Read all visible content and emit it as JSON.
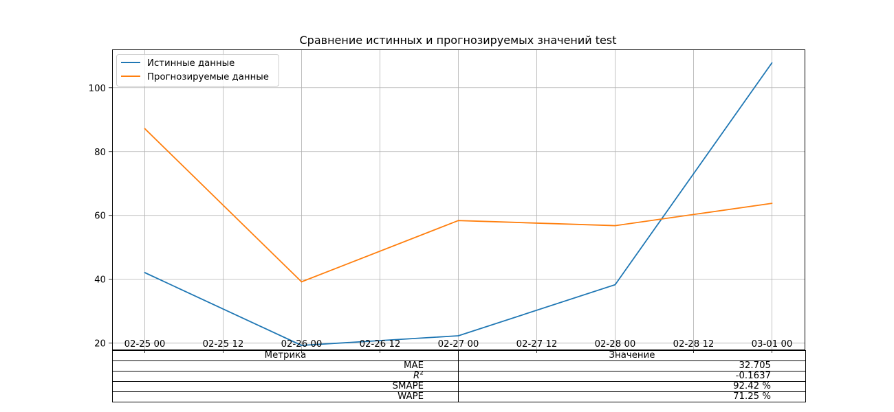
{
  "chart_data": {
    "type": "line",
    "title": "Сравнение истинных и прогнозируемых значений test",
    "xlabel": "",
    "ylabel": "",
    "x": [
      "02-25 00",
      "02-26 00",
      "02-27 00",
      "02-28 00",
      "03-01 00"
    ],
    "x_hours": [
      0,
      24,
      48,
      72,
      96
    ],
    "xticks": [
      "02-25 00",
      "02-25 12",
      "02-26 00",
      "02-26 12",
      "02-27 00",
      "02-27 12",
      "02-28 00",
      "02-28 12",
      "03-01 00"
    ],
    "yticks": [
      20,
      40,
      60,
      80,
      100
    ],
    "ylim": [
      18,
      112
    ],
    "xlim_hours": [
      -5,
      101
    ],
    "grid": true,
    "legend_position": "upper-left",
    "series": [
      {
        "name": "Истинные данные",
        "color": "#1f77b4",
        "values": [
          42.1,
          19.3,
          22.3,
          38.3,
          107.8
        ]
      },
      {
        "name": "Прогнозируемые данные",
        "color": "#ff7f0e",
        "values": [
          87.2,
          39.2,
          58.4,
          56.8,
          63.8
        ]
      }
    ]
  },
  "table": {
    "headers": [
      "Метрика",
      "Значение"
    ],
    "rows": [
      {
        "metric": "MAE",
        "value": "32.705"
      },
      {
        "metric": "R",
        "metric_sup": "2",
        "value": "-0.1637"
      },
      {
        "metric": "SMAPE",
        "value": "92.42 %"
      },
      {
        "metric": "WAPE",
        "value": "71.25 %"
      }
    ]
  }
}
